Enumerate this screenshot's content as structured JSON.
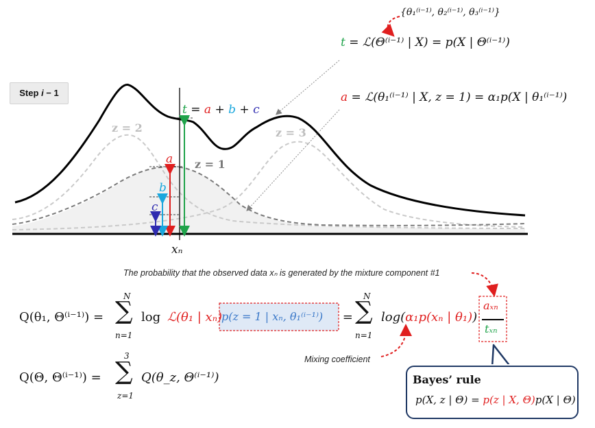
{
  "step": {
    "prefix": "Step ",
    "var": "i",
    "suffix": " − 1"
  },
  "top_set": "{θ₁⁽ⁱ⁻¹⁾, θ₂⁽ⁱ⁻¹⁾, θ₃⁽ⁱ⁻¹⁾}",
  "eq_t": {
    "lhs": "t",
    "rhs": " = ℒ(Θ⁽ⁱ⁻¹⁾ | X) = p(X | Θ⁽ⁱ⁻¹⁾)"
  },
  "eq_a": {
    "lhs": "a",
    "rhs": " = ℒ(θ₁⁽ⁱ⁻¹⁾ | X, z = 1) = α₁p(X | θ₁⁽ⁱ⁻¹⁾)"
  },
  "curve_labels": {
    "sum": {
      "t": "t",
      "eq": " = ",
      "a": "a",
      "p1": " + ",
      "b": "b",
      "p2": " + ",
      "c": "c"
    },
    "z2": "z = 2",
    "z1": "z = 1",
    "z3": "z = 3",
    "a": "a",
    "b": "b",
    "c": "c",
    "xn": "xₙ"
  },
  "note_top": "The probability that the observed data xₙ is generated by the mixture component #1",
  "q_eq": {
    "lhs": "Q(θ₁, Θ⁽ⁱ⁻¹⁾) = ",
    "sum_top": "N",
    "sum_bottom": "n=1",
    "log_term": "log",
    "lik": "ℒ(θ₁ | xₙ)",
    "post": "p(z = 1 | xₙ, θ₁⁽ⁱ⁻¹⁾)",
    "eq2": " = ",
    "sum2_top": "N",
    "sum2_bottom": "n=1",
    "log2": "log(",
    "alpha": "α₁p(xₙ | θ₁)",
    "close": ")",
    "frac_num": "aₓₙ",
    "frac_den": "tₓₙ"
  },
  "q_total": {
    "lhs": "Q(Θ, Θ⁽ⁱ⁻¹⁾) = ",
    "sum_top": "3",
    "sum_bottom": "z=1",
    "rhs": "Q(θ_z, Θ⁽ⁱ⁻¹⁾)"
  },
  "mixing_label": "Mixing coefficient",
  "bayes": {
    "title": "Bayes’ rule",
    "eq_lhs": "p(X, z | Θ) = ",
    "eq_red": "p(z | X, Θ)",
    "eq_rhs": "p(X | Θ)"
  },
  "colors": {
    "red": "#e01f1f",
    "green": "#1fa34a",
    "blue": "#3a78c8",
    "cyan": "#1aa7dd",
    "navy": "#2f2bb0",
    "grey": "#8c8c8c",
    "box": "#1f3864"
  }
}
